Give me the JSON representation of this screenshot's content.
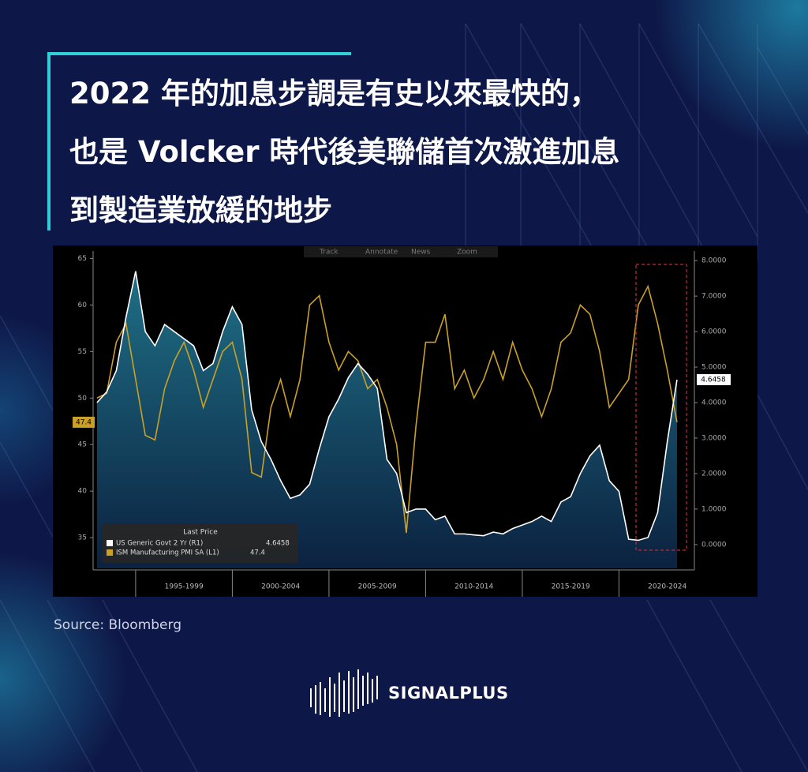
{
  "title_lines": [
    "2022 年的加息步調是有史以來最快的，",
    "也是 Volcker 時代後美聯儲首次激進加息",
    "到製造業放緩的地步"
  ],
  "source": "Source: Bloomberg",
  "brand": "SIGNALPLUS",
  "chart_data": {
    "type": "line",
    "toolbar": [
      "Track",
      "Annotate",
      "News",
      "Zoom"
    ],
    "legend_title": "Last Price",
    "x": [
      1993,
      1993.5,
      1994,
      1994.5,
      1995,
      1995.5,
      1996,
      1996.5,
      1997,
      1997.5,
      1998,
      1998.5,
      1999,
      1999.5,
      2000,
      2000.5,
      2001,
      2001.5,
      2002,
      2002.5,
      2003,
      2003.5,
      2004,
      2004.5,
      2005,
      2005.5,
      2006,
      2006.5,
      2007,
      2007.5,
      2008,
      2008.5,
      2009,
      2009.5,
      2010,
      2010.5,
      2011,
      2011.5,
      2012,
      2012.5,
      2013,
      2013.5,
      2014,
      2014.5,
      2015,
      2015.5,
      2016,
      2016.5,
      2017,
      2017.5,
      2018,
      2018.5,
      2019,
      2019.5,
      2020,
      2020.5,
      2021,
      2021.5,
      2022,
      2022.5,
      2023
    ],
    "series": [
      {
        "name": "US Generic Govt 2 Yr (R1)",
        "color": "#ffffff",
        "axis": "y2",
        "values": [
          4.0,
          4.3,
          4.9,
          6.4,
          7.7,
          6.0,
          5.6,
          6.2,
          6.0,
          5.8,
          5.6,
          4.9,
          5.1,
          6.0,
          6.7,
          6.2,
          3.8,
          2.9,
          2.4,
          1.8,
          1.3,
          1.4,
          1.7,
          2.7,
          3.6,
          4.1,
          4.7,
          5.1,
          4.8,
          4.4,
          2.4,
          2.0,
          0.9,
          1.0,
          1.0,
          0.7,
          0.8,
          0.3,
          0.3,
          0.27,
          0.25,
          0.35,
          0.3,
          0.45,
          0.55,
          0.65,
          0.8,
          0.65,
          1.2,
          1.35,
          2.0,
          2.5,
          2.8,
          1.8,
          1.5,
          0.15,
          0.12,
          0.2,
          0.9,
          2.9,
          4.6458
        ]
      },
      {
        "name": "ISM Manufacturing PMI SA (L1)",
        "color": "#c9a128",
        "axis": "y",
        "values": [
          50,
          50.5,
          56,
          58,
          52,
          46,
          45.5,
          51,
          54,
          56,
          53,
          49,
          52,
          55,
          56,
          52,
          42,
          41.5,
          49,
          52,
          48,
          52,
          60,
          61,
          56,
          53,
          55,
          54,
          51,
          52,
          49,
          45,
          35.5,
          47,
          56,
          56,
          59,
          51,
          53,
          50,
          52,
          55,
          52,
          56,
          53,
          51,
          48,
          51,
          56,
          57,
          60,
          59,
          55,
          49,
          50.5,
          52,
          60,
          62,
          58,
          53,
          47.4
        ]
      }
    ],
    "xlim": [
      1992.8,
      2023.9
    ],
    "xticks": [
      {
        "value": 1997.5,
        "label": "1995-1999"
      },
      {
        "value": 2002.5,
        "label": "2000-2004"
      },
      {
        "value": 2007.5,
        "label": "2005-2009"
      },
      {
        "value": 2012.5,
        "label": "2010-2014"
      },
      {
        "value": 2017.5,
        "label": "2015-2019"
      },
      {
        "value": 2022.5,
        "label": "2020-2024"
      }
    ],
    "ylim": [
      31.7,
      65.8
    ],
    "yticks": [
      35,
      40,
      45,
      50,
      55,
      60,
      65
    ],
    "y2lim": [
      -0.67,
      8.27
    ],
    "y2ticks": [
      {
        "value": 0,
        "label": "0.0000"
      },
      {
        "value": 1,
        "label": "1.0000"
      },
      {
        "value": 2,
        "label": "2.0000"
      },
      {
        "value": 3,
        "label": "3.0000"
      },
      {
        "value": 4,
        "label": "4.0000"
      },
      {
        "value": 5,
        "label": "5.0000"
      },
      {
        "value": 6,
        "label": "6.0000"
      },
      {
        "value": 7,
        "label": "7.0000"
      },
      {
        "value": 8,
        "label": "8.0000"
      }
    ]
  }
}
